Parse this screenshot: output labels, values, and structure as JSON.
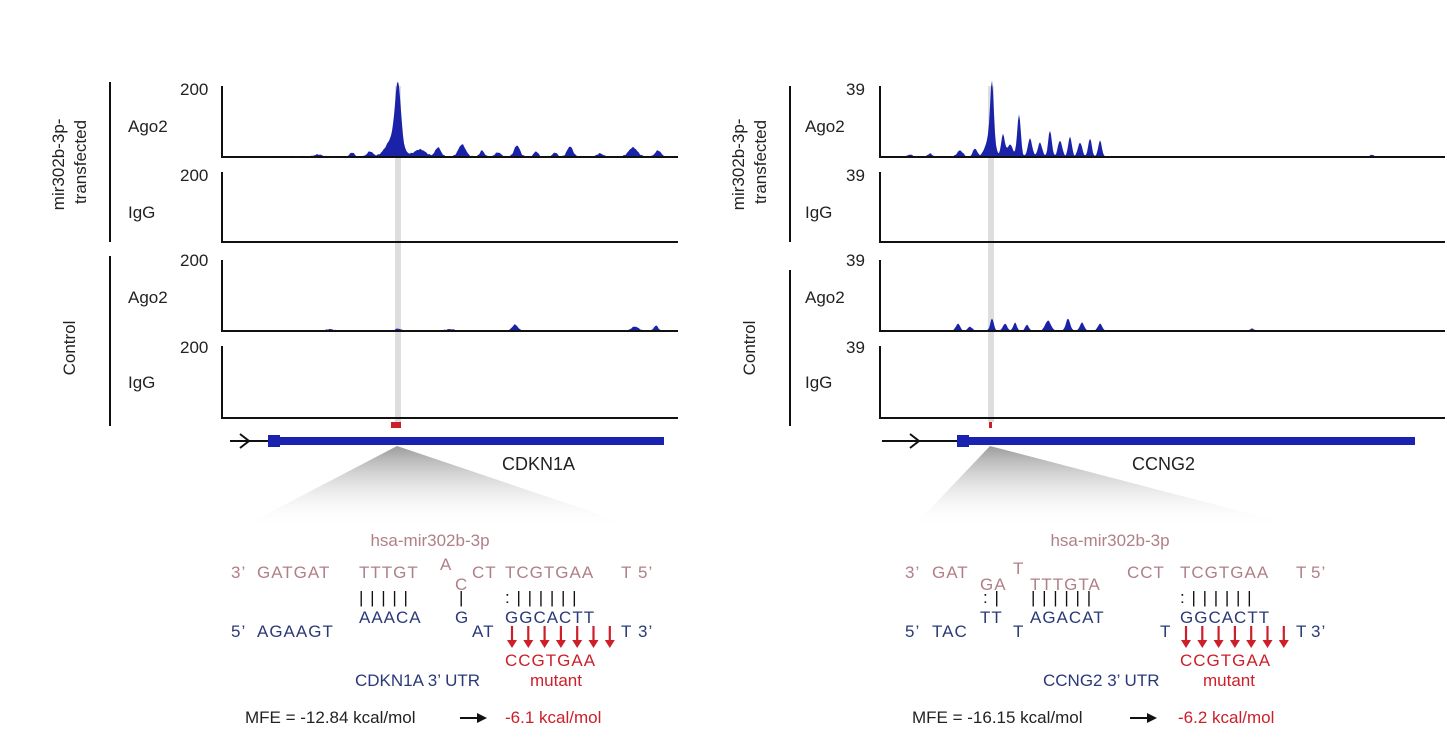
{
  "colors": {
    "track_fill": "#1a22a8",
    "gene_blue": "#1a22b0",
    "mirna_text": "#b08088",
    "utr_text": "#2a3a78",
    "mutant_red": "#cc1f2a",
    "axis": "#111111",
    "highlight": "#d6d6d6"
  },
  "panels": [
    {
      "id": "cdkn1a",
      "groups": [
        {
          "label_lines": [
            "mir302b-3p-",
            "transfected"
          ]
        },
        {
          "label_lines": [
            "Control"
          ]
        }
      ],
      "tracks": [
        {
          "name": "Ago2",
          "ymax": "200"
        },
        {
          "name": "IgG",
          "ymax": "200"
        },
        {
          "name": "Ago2",
          "ymax": "200"
        },
        {
          "name": "IgG",
          "ymax": "200"
        }
      ],
      "gene_name": "CDKN1A",
      "mirna_name": "hsa-mir302b-3p",
      "mirna_seq": {
        "prefix": "3’",
        "segments": [
          "GATGAT",
          "TTTGT",
          "A",
          "C",
          "CT",
          "TCGTGAA",
          "T"
        ],
        "suffix": "5’"
      },
      "pair_marks": [
        "| | | | |",
        "|",
        ": | | | | | |"
      ],
      "utr_seq": {
        "prefix": "5’",
        "segments": [
          "AGAAGT",
          "AAACA",
          "G",
          "AT",
          "GGCACTT",
          "T"
        ],
        "suffix": "3’"
      },
      "mutant_seq": "CCGTGAA",
      "utr_label": "CDKN1A 3’ UTR",
      "mutant_label": "mutant",
      "mfe_text": "MFE = -12.84 kcal/mol",
      "mfe_mutant": "-6.1 kcal/mol"
    },
    {
      "id": "ccng2",
      "groups": [
        {
          "label_lines": [
            "mir302b-3p-",
            "transfected"
          ]
        },
        {
          "label_lines": [
            "Control"
          ]
        }
      ],
      "tracks": [
        {
          "name": "Ago2",
          "ymax": "39"
        },
        {
          "name": "IgG",
          "ymax": "39"
        },
        {
          "name": "Ago2",
          "ymax": "39"
        },
        {
          "name": "IgG",
          "ymax": "39"
        }
      ],
      "gene_name": "CCNG2",
      "mirna_name": "hsa-mir302b-3p",
      "mirna_seq": {
        "prefix": "3’",
        "segments": [
          "GAT",
          "GA",
          "T",
          "TTTGTA",
          "CCT",
          "TCGTGAA",
          "T"
        ],
        "suffix": "5’"
      },
      "pair_marks": [
        ": |",
        "| | | | | |",
        ": | | | | | |"
      ],
      "utr_seq": {
        "prefix": "5’",
        "segments": [
          "TAC",
          "TT",
          "T",
          "AGACAT",
          "T",
          "GGCACTT",
          "T"
        ],
        "suffix": "3’"
      },
      "mutant_seq": "CCGTGAA",
      "utr_label": "CCNG2 3’ UTR",
      "mutant_label": "mutant",
      "mfe_text": "MFE = -16.15 kcal/mol",
      "mfe_mutant": "-6.2 kcal/mol"
    }
  ]
}
